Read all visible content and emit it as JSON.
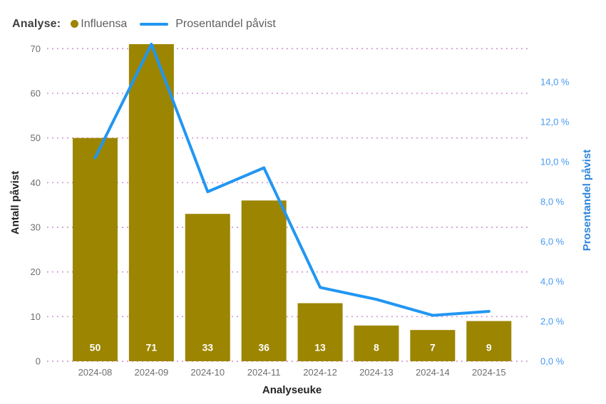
{
  "legend": {
    "prefix": "Analyse:",
    "items": [
      {
        "label": "Influensa",
        "marker": "dot",
        "color": "#9C8500"
      },
      {
        "label": "Prosentandel påvist",
        "marker": "line",
        "color": "#2196F3"
      }
    ]
  },
  "chart_data": {
    "type": "bar",
    "subtype": "column+line dual-axis combo",
    "categories": [
      "2024-08",
      "2024-09",
      "2024-10",
      "2024-11",
      "2024-12",
      "2024-13",
      "2024-14",
      "2024-15"
    ],
    "series": [
      {
        "name": "Influensa",
        "type": "bar",
        "axis": "left",
        "color": "#9C8500",
        "values": [
          50,
          71,
          33,
          36,
          13,
          8,
          7,
          9
        ],
        "data_labels": true
      },
      {
        "name": "Prosentandel påvist",
        "type": "line",
        "axis": "right",
        "color": "#2196F3",
        "unit": "%",
        "values": [
          10.2,
          15.9,
          8.5,
          9.7,
          3.7,
          3.1,
          2.3,
          2.5
        ]
      }
    ],
    "title": "",
    "xlabel": "Analyseuke",
    "left_axis": {
      "title": "Antall påvist",
      "min": 0,
      "max": 71,
      "ticks": [
        0,
        10,
        20,
        30,
        40,
        50,
        60,
        70
      ]
    },
    "right_axis": {
      "title": "Prosentandel påvist",
      "min": 0,
      "max": 15.9,
      "ticks": [
        {
          "value": 0,
          "label": "0,0 %"
        },
        {
          "value": 2,
          "label": "2,0 %"
        },
        {
          "value": 4,
          "label": "4,0 %"
        },
        {
          "value": 6,
          "label": "6,0 %"
        },
        {
          "value": 8,
          "label": "8,0 %"
        },
        {
          "value": 10,
          "label": "10,0 %"
        },
        {
          "value": 12,
          "label": "12,0 %"
        },
        {
          "value": 14,
          "label": "14,0 %"
        }
      ]
    },
    "grid": {
      "orientation": "horizontal",
      "style": "dotted",
      "on": true
    },
    "legend_position": "top-left"
  },
  "colors": {
    "background": "#FFFFFF",
    "bar": "#9C8500",
    "line": "#2196F3",
    "gridline": "#C77BCD",
    "axis_tick_text": "#6E6E6E",
    "axis_title_text": "#252423",
    "right_axis_tick_text": "#4799F2",
    "right_axis_title_text": "#2E86DC",
    "bar_label_text": "#FFFFFF",
    "legend_prefix_text": "#3F3F3F",
    "legend_item_text": "#5E5E5E"
  }
}
